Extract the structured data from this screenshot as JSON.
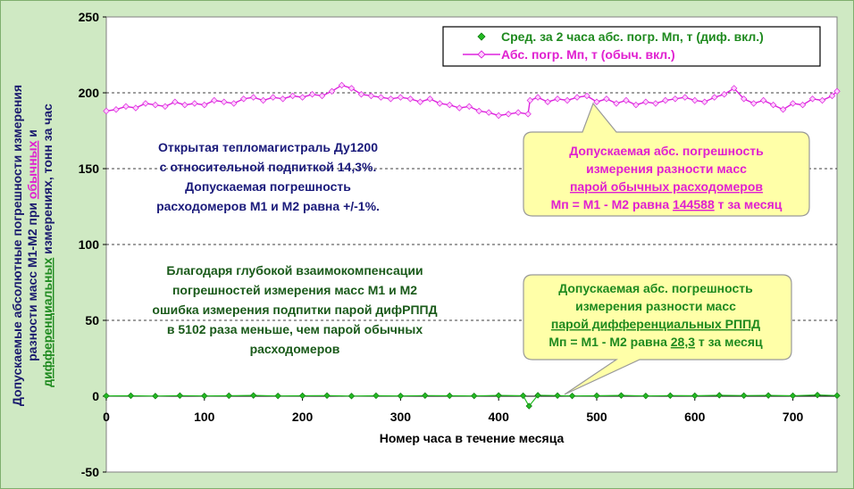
{
  "chart_data": {
    "type": "line",
    "title": "",
    "xlabel": "Номер часа в течение месяца",
    "ylabel_lines": [
      [
        {
          "text": "Допускаемые абсолютные погрешности измерения",
          "color": "#1a1a6e"
        }
      ],
      [
        {
          "text": "разности масс М1-М2 при ",
          "color": "#1a1a6e"
        },
        {
          "text": "обычных",
          "color": "#e020d0",
          "u": true
        },
        {
          "text": " и",
          "color": "#1a1a6e"
        }
      ],
      [
        {
          "text": "дифференциальных",
          "color": "#1f8a1f",
          "u": true
        },
        {
          "text": " измерениях, тонн за час",
          "color": "#1a1a6e"
        }
      ]
    ],
    "xlim": [
      0,
      745
    ],
    "ylim": [
      -50,
      250
    ],
    "xticks": [
      "0",
      "100",
      "200",
      "300",
      "400",
      "500",
      "600",
      "700"
    ],
    "yticks": [
      "250",
      "200",
      "150",
      "100",
      "50",
      "0",
      "-50"
    ],
    "grid": "dashed horizontal at 50, 100, 150, 200",
    "legend_position": "top-right",
    "series": [
      {
        "name": "Сред. за 2 часа абс. погр. Мп, т (диф. вкл.)",
        "color": "#22bb22",
        "marker": "diamond",
        "x": [
          0,
          25,
          50,
          75,
          100,
          125,
          150,
          175,
          200,
          225,
          250,
          275,
          300,
          325,
          350,
          375,
          400,
          425,
          431,
          440,
          460,
          475,
          500,
          525,
          550,
          575,
          600,
          625,
          650,
          675,
          700,
          725,
          745
        ],
        "y": [
          0.2,
          0.3,
          0.1,
          0.4,
          0.2,
          0.3,
          0.5,
          0.2,
          0.3,
          0.4,
          0.1,
          0.3,
          0.2,
          0.4,
          0.3,
          0.2,
          0.5,
          0.3,
          -6.5,
          0.6,
          0.4,
          0.2,
          0.3,
          0.5,
          0.2,
          0.4,
          0.3,
          0.6,
          0.4,
          0.5,
          0.3,
          0.8,
          0.4
        ]
      },
      {
        "name": "Абс. погр. Мп, т (обыч. вкл.)",
        "color": "#dd22dd",
        "marker": "diamond",
        "x": [
          0,
          10,
          20,
          30,
          40,
          50,
          60,
          70,
          80,
          90,
          100,
          110,
          120,
          130,
          140,
          150,
          160,
          170,
          180,
          190,
          200,
          210,
          220,
          230,
          240,
          250,
          260,
          270,
          280,
          290,
          300,
          310,
          320,
          330,
          340,
          350,
          360,
          370,
          380,
          390,
          400,
          410,
          420,
          430,
          432,
          440,
          450,
          460,
          470,
          480,
          490,
          500,
          510,
          520,
          530,
          540,
          550,
          560,
          570,
          580,
          590,
          600,
          610,
          620,
          630,
          640,
          650,
          660,
          670,
          680,
          690,
          700,
          710,
          720,
          730,
          740,
          745
        ],
        "y": [
          188,
          189,
          191,
          190,
          193,
          192,
          191,
          194,
          192,
          193,
          192,
          195,
          194,
          193,
          196,
          197,
          195,
          197,
          196,
          198,
          197,
          199,
          198,
          201,
          205,
          203,
          199,
          198,
          197,
          196,
          197,
          196,
          194,
          196,
          193,
          192,
          190,
          191,
          188,
          187,
          185,
          186,
          187,
          186,
          195,
          197,
          194,
          196,
          195,
          197,
          198,
          194,
          196,
          193,
          195,
          192,
          194,
          193,
          195,
          196,
          197,
          195,
          194,
          197,
          199,
          203,
          196,
          193,
          195,
          192,
          189,
          193,
          192,
          196,
          195,
          198,
          201
        ]
      }
    ],
    "annotations": [
      {
        "lines": [
          "Открытая тепломагистраль Ду1200",
          "с относительной подпиткой 14,3%.",
          "Допускаемая погрешность",
          "расходомеров М1 и М2 равна +/-1%."
        ],
        "color": "#1a1a7a"
      },
      {
        "lines": [
          "Благодаря глубокой взаимокомпенсации",
          "погрешностей измерения масс М1 и М2",
          "ошибка измерения подпитки парой дифРППД",
          "в 5102 раза меньше, чем парой обычных",
          "расходомеров"
        ],
        "color": "#1a5a1a"
      }
    ],
    "callouts": [
      {
        "line1": "Допускаемая абс. погрешность",
        "line2": "измерения разности масс",
        "line3": "парой обычных расходомеров",
        "line4_prefix": "Мп = М1 - М2 равна ",
        "line4_value": "144588",
        "line4_suffix": " т за месяц",
        "color": "#e020d0"
      },
      {
        "line1": "Допускаемая абс. погрешность",
        "line2": "измерения разности масс",
        "line3": "парой дифференциальных РППД",
        "line4_prefix": "Мп = М1 - М2 равна ",
        "line4_value": "28,3",
        "line4_suffix": " т за месяц",
        "color": "#1f8a1f"
      }
    ]
  }
}
